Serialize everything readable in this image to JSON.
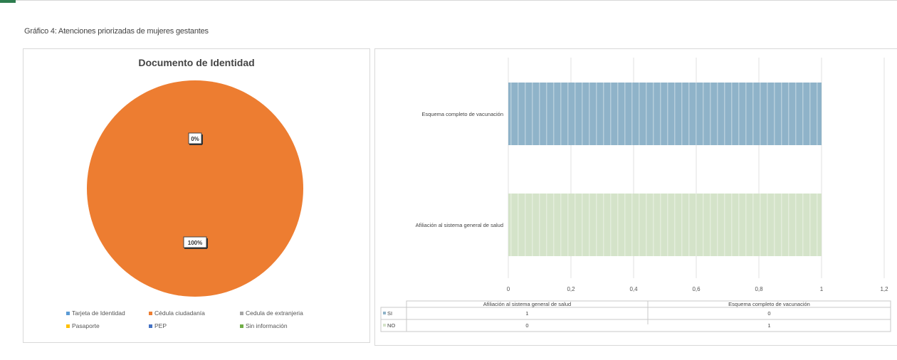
{
  "caption": "Gráfico 4: Atenciones priorizadas de mujeres gestantes",
  "chart_data": [
    {
      "type": "pie",
      "title": "Documento de Identidad",
      "slices": [
        {
          "name": "Tarjeta de Identidad",
          "value": 0,
          "label": "0%",
          "color": "#5b9bd5"
        },
        {
          "name": "Cédula ciudadanía",
          "value": 100,
          "label": "100%",
          "color": "#ed7d31"
        },
        {
          "name": "Cedula de extranjeria",
          "value": 0,
          "label": "",
          "color": "#a5a5a5"
        },
        {
          "name": "Pasaporte",
          "value": 0,
          "label": "",
          "color": "#ffc000"
        },
        {
          "name": "PEP",
          "value": 0,
          "label": "",
          "color": "#4472c4"
        },
        {
          "name": "Sin información",
          "value": 0,
          "label": "",
          "color": "#70ad47"
        }
      ],
      "legend_position": "bottom"
    },
    {
      "type": "bar",
      "orientation": "horizontal",
      "categories": [
        "Esquema completo de vacunación",
        "Afiliación al sistema general de salud"
      ],
      "series": [
        {
          "name": "SI",
          "values": [
            0,
            1
          ]
        },
        {
          "name": "NO",
          "values": [
            1,
            0
          ]
        }
      ],
      "bar_colors": [
        "#8fb3c9",
        "#d4e3c9"
      ],
      "xlim": [
        0,
        1.2
      ],
      "xticks": [
        "0",
        "0,2",
        "0,4",
        "0,6",
        "0,8",
        "1",
        "1,2"
      ],
      "grid": true,
      "data_table": {
        "columns": [
          "Afiliación al sistema general de salud",
          "Esquema completo de vacunación"
        ],
        "rows": [
          {
            "label": "SI",
            "values": [
              "1",
              "0"
            ]
          },
          {
            "label": "NO",
            "values": [
              "0",
              "1"
            ]
          }
        ]
      }
    }
  ]
}
